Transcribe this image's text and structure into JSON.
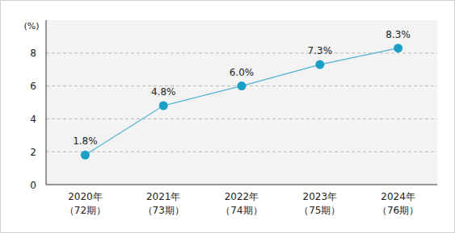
{
  "chart_data": {
    "type": "line",
    "y_label": "(%)",
    "categories": [
      "2020年\n（72期）",
      "2021年\n（73期）",
      "2022年\n（74期）",
      "2023年\n（75期）",
      "2024年\n（76期）"
    ],
    "values": [
      1.8,
      4.8,
      6.0,
      7.3,
      8.3
    ],
    "value_labels": [
      "1.8%",
      "4.8%",
      "6.0%",
      "7.3%",
      "8.3%"
    ],
    "color": "#1a9fc6",
    "marker": "circle",
    "data_labels": true,
    "ylim": [
      0,
      10
    ],
    "yticks": [
      0,
      2,
      4,
      6,
      8
    ],
    "grid": true
  }
}
